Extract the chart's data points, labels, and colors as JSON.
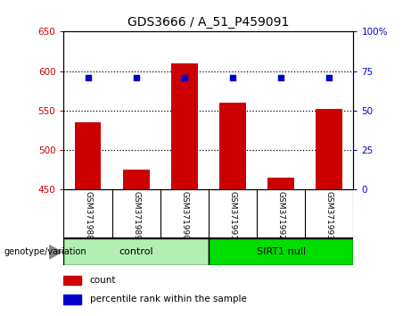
{
  "title": "GDS3666 / A_51_P459091",
  "samples": [
    "GSM371988",
    "GSM371989",
    "GSM371990",
    "GSM371991",
    "GSM371992",
    "GSM371993"
  ],
  "bar_values": [
    535,
    475,
    610,
    560,
    465,
    552
  ],
  "percentile_values": [
    71,
    71,
    71,
    71,
    71,
    71
  ],
  "ylim_left": [
    450,
    650
  ],
  "ylim_right": [
    0,
    100
  ],
  "yticks_left": [
    450,
    500,
    550,
    600,
    650
  ],
  "yticks_right": [
    0,
    25,
    50,
    75,
    100
  ],
  "yticklabels_right": [
    "0",
    "25",
    "50",
    "75",
    "100%"
  ],
  "bar_color": "#cc0000",
  "dot_color": "#0000cc",
  "ctrl_color": "#b2f0b2",
  "sirt_color": "#00dd00",
  "legend_count_label": "count",
  "legend_pct_label": "percentile rank within the sample",
  "genotype_label": "genotype/variation",
  "background_color": "#ffffff",
  "label_area_color": "#cccccc",
  "grid_dotted_color": "#000000"
}
